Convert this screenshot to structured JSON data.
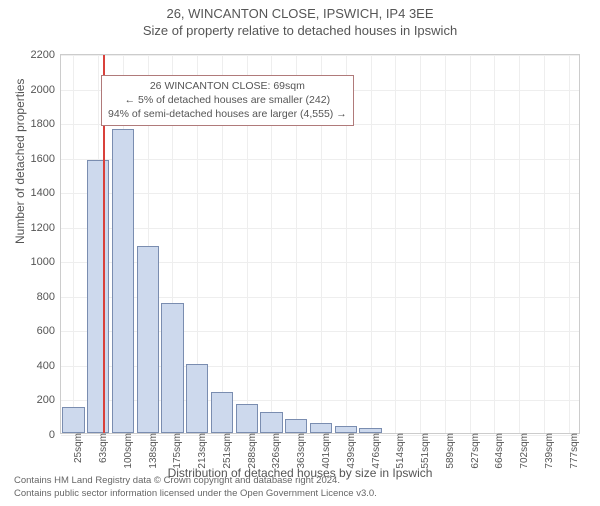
{
  "title_main": "26, WINCANTON CLOSE, IPSWICH, IP4 3EE",
  "title_sub": "Size of property relative to detached houses in Ipswich",
  "ylabel": "Number of detached properties",
  "xlabel": "Distribution of detached houses by size in Ipswich",
  "chart": {
    "type": "bar",
    "ylim": [
      0,
      2200
    ],
    "ytick_step": 200,
    "bar_color": "#cdd9ed",
    "bar_border": "#7a8db0",
    "grid_color": "#eeeeee",
    "axis_color": "#cccccc",
    "bg_color": "#ffffff",
    "ref_line_color": "#d9413b",
    "ref_line_x_index": 1.2,
    "title_fontsize": 13,
    "label_fontsize": 12,
    "tick_fontsize": 11,
    "categories": [
      "25sqm",
      "63sqm",
      "100sqm",
      "138sqm",
      "175sqm",
      "213sqm",
      "251sqm",
      "288sqm",
      "326sqm",
      "363sqm",
      "401sqm",
      "439sqm",
      "476sqm",
      "514sqm",
      "551sqm",
      "589sqm",
      "627sqm",
      "664sqm",
      "702sqm",
      "739sqm",
      "777sqm"
    ],
    "values": [
      150,
      1580,
      1760,
      1080,
      750,
      400,
      240,
      170,
      120,
      80,
      60,
      40,
      30,
      0,
      0,
      0,
      0,
      0,
      0,
      0,
      0
    ]
  },
  "annotation": {
    "line1": "26 WINCANTON CLOSE: 69sqm",
    "line2": "← 5% of detached houses are smaller (242)",
    "line3": "94% of semi-detached houses are larger (4,555) →",
    "border_color": "#b07a7a"
  },
  "footer_line1": "Contains HM Land Registry data © Crown copyright and database right 2024.",
  "footer_line2": "Contains public sector information licensed under the Open Government Licence v3.0."
}
